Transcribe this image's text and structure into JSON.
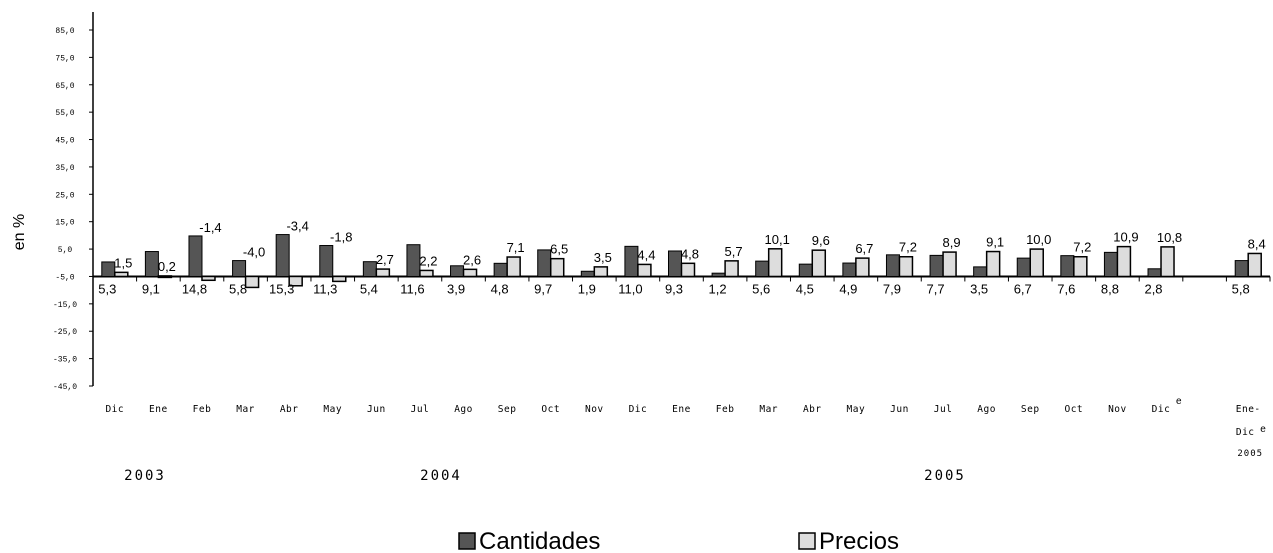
{
  "chart_data": {
    "type": "bar",
    "ylabel": "en %",
    "ylim": [
      -45,
      85
    ],
    "yticks": [
      "85,0",
      "75,0",
      "65,0",
      "55,0",
      "45,0",
      "35,0",
      "25,0",
      "15,0",
      "5,0",
      "-5,0",
      "-15,0",
      "-25,0",
      "-35,0",
      "-45,0"
    ],
    "ytick_values": [
      85,
      75,
      65,
      55,
      45,
      35,
      25,
      15,
      5,
      -5,
      -15,
      -25,
      -35,
      -45
    ],
    "categories": [
      "Dic",
      "Ene",
      "Feb",
      "Mar",
      "Abr",
      "May",
      "Jun",
      "Jul",
      "Ago",
      "Sep",
      "Oct",
      "Nov",
      "Dic",
      "Ene",
      "Feb",
      "Mar",
      "Abr",
      "May",
      "Jun",
      "Jul",
      "Ago",
      "Sep",
      "Oct",
      "Nov",
      "Dic",
      "",
      "Ene-"
    ],
    "category_extra": {
      "24": "e",
      "26": "Dice"
    },
    "series": [
      {
        "name": "Cantidades",
        "color": "#555555",
        "values": [
          5.3,
          9.1,
          14.8,
          5.8,
          15.3,
          11.3,
          5.4,
          11.6,
          3.9,
          4.8,
          9.7,
          1.9,
          11.0,
          9.3,
          1.2,
          5.6,
          4.5,
          4.9,
          7.9,
          7.7,
          3.5,
          6.7,
          7.6,
          8.8,
          2.8,
          null,
          5.8
        ],
        "labels": [
          "5,3",
          "9,1",
          "14,8",
          "5,8",
          "15,3",
          "11,3",
          "5,4",
          "11,6",
          "3,9",
          "4,8",
          "9,7",
          "1,9",
          "11,0",
          "9,3",
          "1,2",
          "5,6",
          "4,5",
          "4,9",
          "7,9",
          "7,7",
          "3,5",
          "6,7",
          "7,6",
          "8,8",
          "2,8",
          "",
          "5,8"
        ]
      },
      {
        "name": "Precios",
        "color": "#dddddd",
        "values": [
          1.5,
          0.2,
          -1.4,
          -4.0,
          -3.4,
          -1.8,
          2.7,
          2.2,
          2.6,
          7.1,
          6.5,
          3.5,
          4.4,
          4.8,
          5.7,
          10.1,
          9.6,
          6.7,
          7.2,
          8.9,
          9.1,
          10.0,
          7.2,
          10.9,
          10.8,
          null,
          8.4
        ],
        "labels": [
          "1,5",
          "0,2",
          "-1,4",
          "-4,0",
          "-3,4",
          "-1,8",
          "2,7",
          "2,2",
          "2,6",
          "7,1",
          "6,5",
          "3,5",
          "4,4",
          "4,8",
          "5,7",
          "10,1",
          "9,6",
          "6,7",
          "7,2",
          "8,9",
          "9,1",
          "10,0",
          "7,2",
          "10,9",
          "10,8",
          "",
          "8,4"
        ]
      }
    ],
    "years": [
      "2003",
      "2004",
      "2005"
    ],
    "total_year": "2005",
    "grid": false,
    "legend": {
      "placement": "bottom-center",
      "items": [
        "Cantidades",
        "Precios"
      ]
    }
  }
}
